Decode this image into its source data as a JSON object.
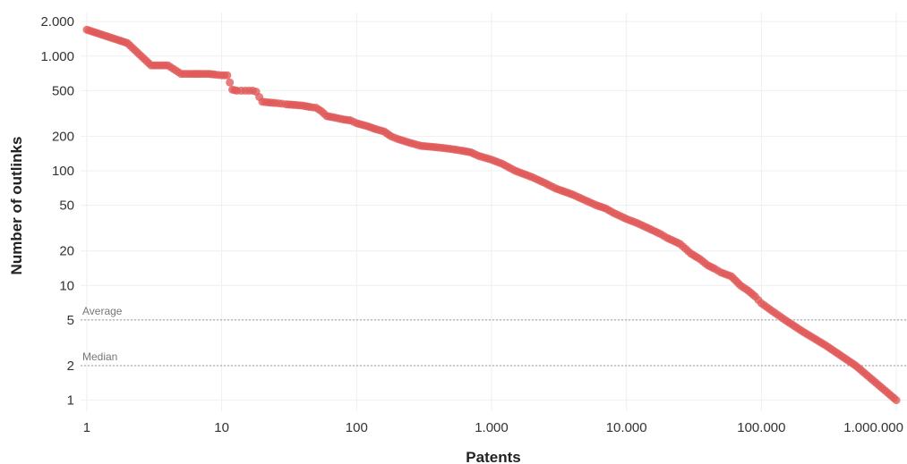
{
  "chart_data": {
    "type": "scatter",
    "xlabel": "Patents",
    "ylabel": "Number of outlinks",
    "x_scale": "log",
    "y_scale": "log",
    "xlim": [
      0.9,
      1200000
    ],
    "ylim": [
      0.8,
      2400
    ],
    "x_ticks": [
      {
        "value": 1,
        "label": "1"
      },
      {
        "value": 10,
        "label": "10"
      },
      {
        "value": 100,
        "label": "100"
      },
      {
        "value": 1000,
        "label": "1.000"
      },
      {
        "value": 10000,
        "label": "10.000"
      },
      {
        "value": 100000,
        "label": "100.000"
      },
      {
        "value": 1000000,
        "label": "1.000.000"
      }
    ],
    "y_ticks": [
      {
        "value": 1,
        "label": "1"
      },
      {
        "value": 2,
        "label": "2"
      },
      {
        "value": 5,
        "label": "5"
      },
      {
        "value": 10,
        "label": "10"
      },
      {
        "value": 20,
        "label": "20"
      },
      {
        "value": 50,
        "label": "50"
      },
      {
        "value": 100,
        "label": "100"
      },
      {
        "value": 200,
        "label": "200"
      },
      {
        "value": 500,
        "label": "500"
      },
      {
        "value": 1000,
        "label": "1.000"
      },
      {
        "value": 2000,
        "label": "2.000"
      }
    ],
    "grid": true,
    "reference_lines": [
      {
        "label": "Average",
        "value": 5
      },
      {
        "label": "Median",
        "value": 2
      }
    ],
    "series": [
      {
        "color": "#e05a5a",
        "points": [
          [
            1,
            1700
          ],
          [
            2,
            1300
          ],
          [
            3,
            830
          ],
          [
            4,
            830
          ],
          [
            5,
            700
          ],
          [
            6,
            700
          ],
          [
            7,
            700
          ],
          [
            8,
            700
          ],
          [
            9,
            690
          ],
          [
            10,
            680
          ],
          [
            11,
            680
          ],
          [
            12,
            510
          ],
          [
            13,
            500
          ],
          [
            14,
            500
          ],
          [
            15,
            500
          ],
          [
            16,
            500
          ],
          [
            17,
            500
          ],
          [
            18,
            490
          ],
          [
            19,
            440
          ],
          [
            20,
            400
          ],
          [
            22,
            395
          ],
          [
            25,
            390
          ],
          [
            28,
            385
          ],
          [
            30,
            380
          ],
          [
            35,
            375
          ],
          [
            40,
            370
          ],
          [
            45,
            360
          ],
          [
            50,
            355
          ],
          [
            55,
            330
          ],
          [
            60,
            300
          ],
          [
            70,
            290
          ],
          [
            80,
            280
          ],
          [
            90,
            275
          ],
          [
            100,
            260
          ],
          [
            120,
            245
          ],
          [
            140,
            230
          ],
          [
            160,
            220
          ],
          [
            180,
            200
          ],
          [
            200,
            190
          ],
          [
            250,
            175
          ],
          [
            300,
            165
          ],
          [
            400,
            160
          ],
          [
            500,
            155
          ],
          [
            600,
            150
          ],
          [
            700,
            145
          ],
          [
            800,
            135
          ],
          [
            1000,
            125
          ],
          [
            1200,
            115
          ],
          [
            1500,
            100
          ],
          [
            2000,
            88
          ],
          [
            2500,
            78
          ],
          [
            3000,
            70
          ],
          [
            4000,
            62
          ],
          [
            5000,
            55
          ],
          [
            6000,
            50
          ],
          [
            7000,
            47
          ],
          [
            8000,
            43
          ],
          [
            10000,
            38
          ],
          [
            12000,
            35
          ],
          [
            15000,
            31
          ],
          [
            18000,
            28
          ],
          [
            20000,
            26
          ],
          [
            25000,
            23
          ],
          [
            30000,
            19
          ],
          [
            35000,
            17
          ],
          [
            40000,
            15
          ],
          [
            45000,
            14
          ],
          [
            50000,
            13
          ],
          [
            60000,
            12
          ],
          [
            70000,
            10
          ],
          [
            80000,
            9
          ],
          [
            90000,
            8
          ],
          [
            100000,
            7
          ],
          [
            120000,
            6
          ],
          [
            150000,
            5
          ],
          [
            200000,
            4
          ],
          [
            300000,
            3
          ],
          [
            500000,
            2
          ],
          [
            1000000,
            1
          ]
        ]
      }
    ]
  }
}
